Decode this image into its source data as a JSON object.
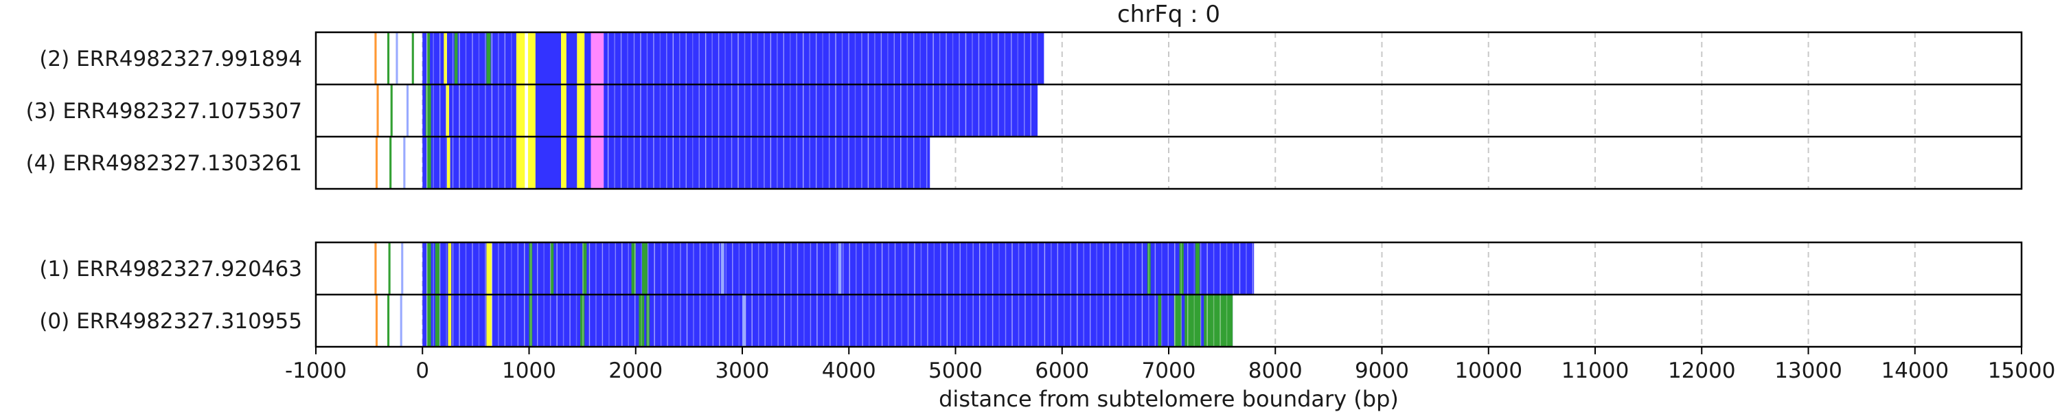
{
  "chart_data": {
    "type": "heatmap",
    "title": "chrFq : 0",
    "xlabel": "distance from subtelomere boundary (bp)",
    "xlim": [
      -1000,
      15000
    ],
    "xticks": [
      -1000,
      0,
      1000,
      2000,
      3000,
      4000,
      5000,
      6000,
      7000,
      8000,
      9000,
      10000,
      11000,
      12000,
      13000,
      14000,
      15000
    ],
    "grid": "vertical dashed at each x tick",
    "colors": {
      "blue": "#3333ff",
      "yellow": "#ffff33",
      "pink": "#ff88ff",
      "green": "#33a033",
      "light_blue": "#99aaff",
      "orange": "#ff9933",
      "white": "#ffffff"
    },
    "groups": [
      {
        "reads": [
          {
            "label": "(2) ERR4982327.991894",
            "end": 5830,
            "segments": [
              {
                "start": -450,
                "end": -430,
                "color": "orange"
              },
              {
                "start": -330,
                "end": -310,
                "color": "green"
              },
              {
                "start": -250,
                "end": -230,
                "color": "light_blue"
              },
              {
                "start": -100,
                "end": -80,
                "color": "green"
              },
              {
                "start": 0,
                "end": 900,
                "color": "blue"
              },
              {
                "start": 40,
                "end": 70,
                "color": "green"
              },
              {
                "start": 200,
                "end": 230,
                "color": "yellow"
              },
              {
                "start": 300,
                "end": 330,
                "color": "green"
              },
              {
                "start": 600,
                "end": 640,
                "color": "green"
              },
              {
                "start": 880,
                "end": 960,
                "color": "yellow"
              },
              {
                "start": 990,
                "end": 1060,
                "color": "yellow"
              },
              {
                "start": 1060,
                "end": 1300,
                "color": "blue"
              },
              {
                "start": 1300,
                "end": 1350,
                "color": "yellow"
              },
              {
                "start": 1350,
                "end": 1450,
                "color": "blue"
              },
              {
                "start": 1450,
                "end": 1520,
                "color": "yellow"
              },
              {
                "start": 1520,
                "end": 1580,
                "color": "blue"
              },
              {
                "start": 1580,
                "end": 1700,
                "color": "pink"
              },
              {
                "start": 1700,
                "end": 5830,
                "color": "blue"
              }
            ]
          },
          {
            "label": "(3) ERR4982327.1075307",
            "end": 5770,
            "segments": [
              {
                "start": -430,
                "end": -410,
                "color": "orange"
              },
              {
                "start": -300,
                "end": -280,
                "color": "green"
              },
              {
                "start": -150,
                "end": -130,
                "color": "light_blue"
              },
              {
                "start": 0,
                "end": 880,
                "color": "blue"
              },
              {
                "start": 30,
                "end": 80,
                "color": "green"
              },
              {
                "start": 220,
                "end": 250,
                "color": "yellow"
              },
              {
                "start": 880,
                "end": 960,
                "color": "yellow"
              },
              {
                "start": 990,
                "end": 1060,
                "color": "yellow"
              },
              {
                "start": 1060,
                "end": 1300,
                "color": "blue"
              },
              {
                "start": 1300,
                "end": 1350,
                "color": "yellow"
              },
              {
                "start": 1350,
                "end": 1450,
                "color": "blue"
              },
              {
                "start": 1450,
                "end": 1520,
                "color": "yellow"
              },
              {
                "start": 1520,
                "end": 1580,
                "color": "blue"
              },
              {
                "start": 1580,
                "end": 1700,
                "color": "pink"
              },
              {
                "start": 1700,
                "end": 5770,
                "color": "blue"
              }
            ]
          },
          {
            "label": "(4) ERR4982327.1303261",
            "end": 4760,
            "segments": [
              {
                "start": -440,
                "end": -420,
                "color": "orange"
              },
              {
                "start": -310,
                "end": -290,
                "color": "green"
              },
              {
                "start": -180,
                "end": -160,
                "color": "light_blue"
              },
              {
                "start": 0,
                "end": 880,
                "color": "blue"
              },
              {
                "start": 40,
                "end": 80,
                "color": "green"
              },
              {
                "start": 230,
                "end": 260,
                "color": "yellow"
              },
              {
                "start": 880,
                "end": 960,
                "color": "yellow"
              },
              {
                "start": 990,
                "end": 1060,
                "color": "yellow"
              },
              {
                "start": 1060,
                "end": 1300,
                "color": "blue"
              },
              {
                "start": 1300,
                "end": 1350,
                "color": "yellow"
              },
              {
                "start": 1350,
                "end": 1450,
                "color": "blue"
              },
              {
                "start": 1450,
                "end": 1520,
                "color": "yellow"
              },
              {
                "start": 1520,
                "end": 1580,
                "color": "blue"
              },
              {
                "start": 1580,
                "end": 1700,
                "color": "pink"
              },
              {
                "start": 1700,
                "end": 4760,
                "color": "blue"
              }
            ]
          }
        ]
      },
      {
        "reads": [
          {
            "label": "(1) ERR4982327.920463",
            "end": 7800,
            "segments": [
              {
                "start": -450,
                "end": -430,
                "color": "orange"
              },
              {
                "start": -320,
                "end": -300,
                "color": "green"
              },
              {
                "start": -200,
                "end": -180,
                "color": "light_blue"
              },
              {
                "start": 0,
                "end": 7800,
                "color": "blue"
              },
              {
                "start": 40,
                "end": 80,
                "color": "green"
              },
              {
                "start": 120,
                "end": 160,
                "color": "green"
              },
              {
                "start": 240,
                "end": 270,
                "color": "yellow"
              },
              {
                "start": 600,
                "end": 650,
                "color": "yellow"
              },
              {
                "start": 1000,
                "end": 1030,
                "color": "green"
              },
              {
                "start": 1200,
                "end": 1230,
                "color": "green"
              },
              {
                "start": 1500,
                "end": 1540,
                "color": "green"
              },
              {
                "start": 1960,
                "end": 2000,
                "color": "green"
              },
              {
                "start": 2060,
                "end": 2110,
                "color": "green"
              },
              {
                "start": 2800,
                "end": 2830,
                "color": "light_blue"
              },
              {
                "start": 3900,
                "end": 3930,
                "color": "light_blue"
              },
              {
                "start": 6800,
                "end": 6830,
                "color": "green"
              },
              {
                "start": 7100,
                "end": 7140,
                "color": "green"
              },
              {
                "start": 7250,
                "end": 7290,
                "color": "green"
              }
            ]
          },
          {
            "label": "(0) ERR4982327.310955",
            "end": 7600,
            "segments": [
              {
                "start": -440,
                "end": -420,
                "color": "orange"
              },
              {
                "start": -330,
                "end": -310,
                "color": "green"
              },
              {
                "start": -210,
                "end": -190,
                "color": "light_blue"
              },
              {
                "start": 0,
                "end": 7600,
                "color": "blue"
              },
              {
                "start": 40,
                "end": 80,
                "color": "green"
              },
              {
                "start": 120,
                "end": 160,
                "color": "green"
              },
              {
                "start": 240,
                "end": 270,
                "color": "yellow"
              },
              {
                "start": 600,
                "end": 650,
                "color": "yellow"
              },
              {
                "start": 1000,
                "end": 1030,
                "color": "green"
              },
              {
                "start": 1480,
                "end": 1520,
                "color": "green"
              },
              {
                "start": 2030,
                "end": 2080,
                "color": "green"
              },
              {
                "start": 2100,
                "end": 2130,
                "color": "green"
              },
              {
                "start": 3000,
                "end": 3030,
                "color": "light_blue"
              },
              {
                "start": 6900,
                "end": 6930,
                "color": "green"
              },
              {
                "start": 7050,
                "end": 7600,
                "color": "green"
              },
              {
                "start": 7120,
                "end": 7150,
                "color": "blue"
              },
              {
                "start": 7300,
                "end": 7330,
                "color": "blue"
              }
            ]
          }
        ]
      }
    ]
  }
}
